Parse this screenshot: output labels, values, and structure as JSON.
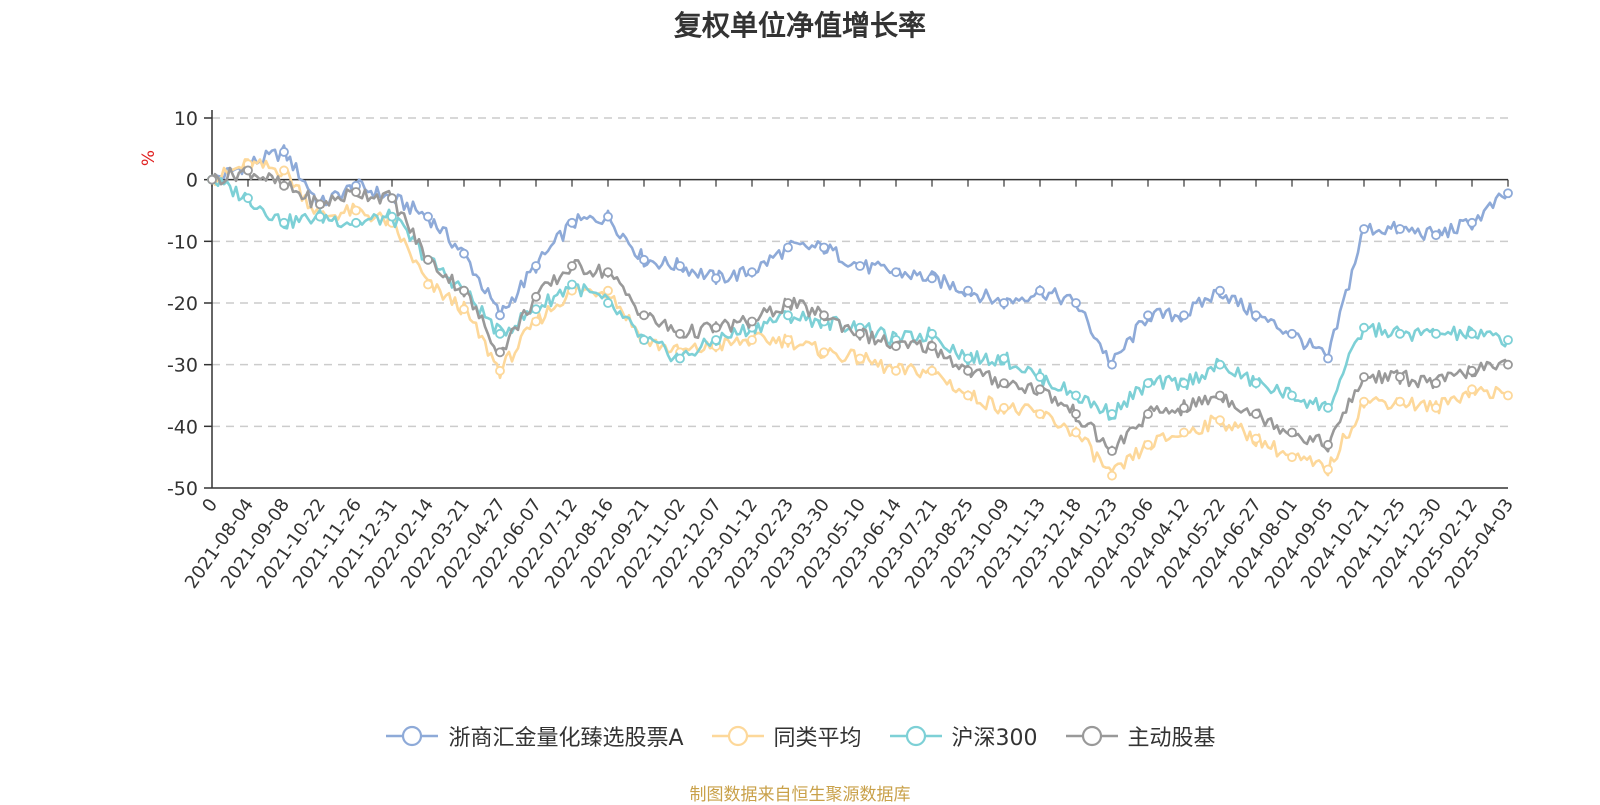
{
  "title": "复权单位净值增长率",
  "source": "制图数据来自恒生聚源数据库",
  "colors": {
    "source": "#c9a14a",
    "ylabel": "#e02020",
    "axis": "#333333",
    "grid": "#cccccc"
  },
  "chart_data": {
    "type": "line",
    "title": "复权单位净值增长率",
    "ylabel": "%",
    "xlabel": "",
    "ylim": [
      -50,
      10
    ],
    "yticks": [
      10,
      0,
      -10,
      -20,
      -30,
      -40,
      -50
    ],
    "grid": "horizontal dashed",
    "legend_position": "bottom",
    "x": [
      "0",
      "2021-08-04",
      "2021-09-08",
      "2021-10-22",
      "2021-11-26",
      "2021-12-31",
      "2022-02-14",
      "2022-03-21",
      "2022-04-27",
      "2022-06-07",
      "2022-07-12",
      "2022-08-16",
      "2022-09-21",
      "2022-11-02",
      "2022-12-07",
      "2023-01-12",
      "2023-02-23",
      "2023-03-30",
      "2023-05-10",
      "2023-06-14",
      "2023-07-21",
      "2023-08-25",
      "2023-10-09",
      "2023-11-13",
      "2023-12-18",
      "2024-01-23",
      "2024-03-06",
      "2024-04-12",
      "2024-05-22",
      "2024-06-27",
      "2024-08-01",
      "2024-09-05",
      "2024-10-21",
      "2024-11-25",
      "2024-12-30",
      "2025-02-12",
      "2025-04-03"
    ],
    "series": [
      {
        "name": "浙商汇金量化臻选股票A",
        "color": "#8eaad8",
        "values": [
          0,
          2.5,
          4.5,
          -4,
          -1,
          -3,
          -6,
          -12,
          -22,
          -14,
          -7,
          -6,
          -13,
          -14,
          -16,
          -15,
          -11,
          -11,
          -14,
          -15,
          -16,
          -18,
          -20,
          -18,
          -20,
          -30,
          -22,
          -22,
          -18,
          -22,
          -25,
          -29,
          -8,
          -8,
          -9,
          -7,
          -2.2
        ]
      },
      {
        "name": "同类平均",
        "color": "#fdd89a",
        "values": [
          0,
          2.5,
          1.5,
          -6,
          -5,
          -7,
          -17,
          -21,
          -31,
          -23,
          -18,
          -18,
          -26,
          -28,
          -27,
          -26,
          -26,
          -28,
          -29,
          -31,
          -31,
          -35,
          -37,
          -38,
          -41,
          -48,
          -43,
          -41,
          -39,
          -42,
          -45,
          -47,
          -36,
          -36,
          -37,
          -34,
          -35
        ]
      },
      {
        "name": "沪深300",
        "color": "#7dd0d6",
        "values": [
          0,
          -3,
          -7,
          -6,
          -7,
          -6,
          -13,
          -18,
          -25,
          -21,
          -17,
          -20,
          -26,
          -29,
          -26,
          -24,
          -22,
          -23,
          -24,
          -26,
          -25,
          -29,
          -29,
          -32,
          -35,
          -38,
          -33,
          -33,
          -30,
          -33,
          -35,
          -37,
          -24,
          -25,
          -25,
          -25,
          -26
        ]
      },
      {
        "name": "主动股基",
        "color": "#999999",
        "values": [
          0,
          1.5,
          -1,
          -4,
          -2,
          -3,
          -13,
          -18,
          -28,
          -19,
          -14,
          -15,
          -22,
          -25,
          -24,
          -23,
          -20,
          -22,
          -25,
          -27,
          -27,
          -31,
          -33,
          -34,
          -38,
          -44,
          -38,
          -37,
          -35,
          -38,
          -41,
          -43,
          -32,
          -32,
          -33,
          -31,
          -30
        ]
      }
    ]
  },
  "legend": [
    "浙商汇金量化臻选股票A",
    "同类平均",
    "沪深300",
    "主动股基"
  ]
}
